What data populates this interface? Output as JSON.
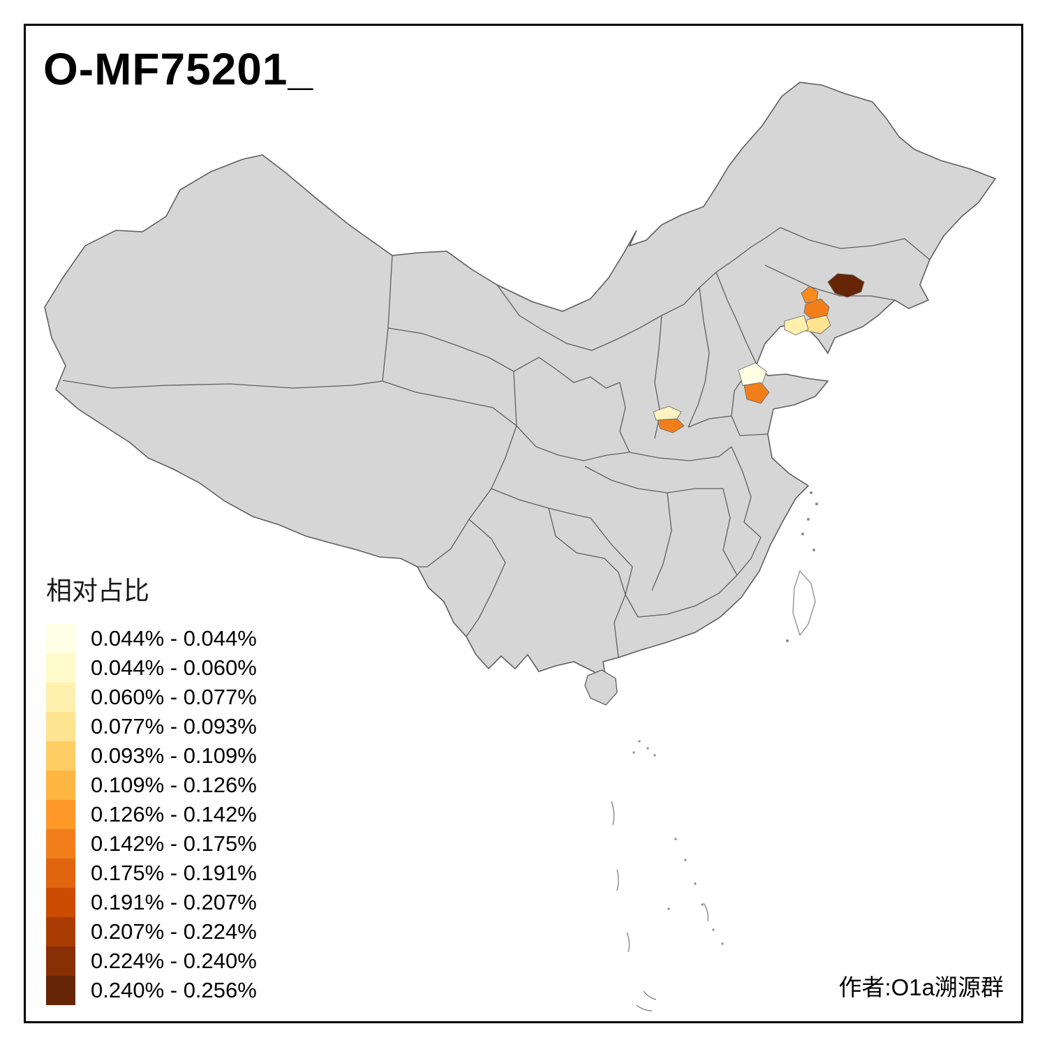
{
  "title": "O-MF75201_",
  "author_credit": "作者:O1a溯源群",
  "legend": {
    "title": "相对占比",
    "items": [
      {
        "label": "0.044% - 0.044%",
        "color": "#FFFFE5"
      },
      {
        "label": "0.044% - 0.060%",
        "color": "#FFFACA"
      },
      {
        "label": "0.060% - 0.077%",
        "color": "#FFF0AE"
      },
      {
        "label": "0.077% - 0.093%",
        "color": "#FEE391"
      },
      {
        "label": "0.093% - 0.109%",
        "color": "#FECE65"
      },
      {
        "label": "0.109% - 0.126%",
        "color": "#FEB642"
      },
      {
        "label": "0.126% - 0.142%",
        "color": "#FE9929"
      },
      {
        "label": "0.142% - 0.175%",
        "color": "#F27E1B"
      },
      {
        "label": "0.175% - 0.191%",
        "color": "#E1640E"
      },
      {
        "label": "0.191% - 0.207%",
        "color": "#CC4C02"
      },
      {
        "label": "0.207% - 0.224%",
        "color": "#AA3C03"
      },
      {
        "label": "0.224% - 0.240%",
        "color": "#882F05"
      },
      {
        "label": "0.240% - 0.256%",
        "color": "#662506"
      }
    ]
  },
  "map": {
    "land_color": "#D6D6D6",
    "border_color": "#5F5F5F",
    "island_outline_color": "#7A7A7A",
    "regions": [
      {
        "name": "northeast-darkest",
        "color": "#662506"
      },
      {
        "name": "northeast-orange-upper",
        "color": "#F98A1E"
      },
      {
        "name": "northeast-orange-lower",
        "color": "#F27E1B"
      },
      {
        "name": "northeast-pale-yellow",
        "color": "#FEE391"
      },
      {
        "name": "northeast-light-yellow",
        "color": "#FFF0AE"
      },
      {
        "name": "shandong-cream",
        "color": "#FFFFE5"
      },
      {
        "name": "shandong-orange",
        "color": "#F27E1B"
      },
      {
        "name": "central-cream",
        "color": "#FFF4C2"
      },
      {
        "name": "central-orange",
        "color": "#F27E1B"
      }
    ]
  }
}
